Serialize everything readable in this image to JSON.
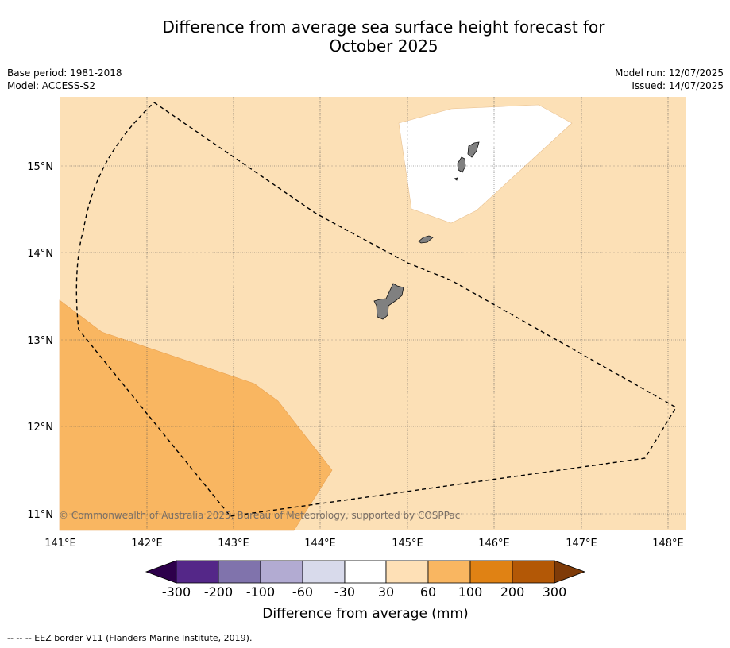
{
  "title": {
    "line1": "Difference from average sea surface height forecast for",
    "line2": "October 2025"
  },
  "meta": {
    "base_period": "Base period: 1981-2018",
    "model": "Model: ACCESS-S2",
    "model_run": "Model run: 12/07/2025",
    "issued": "Issued: 14/07/2025"
  },
  "map": {
    "lat_labels": [
      "15°N",
      "14°N",
      "13°N",
      "12°N",
      "11°N"
    ],
    "lon_labels": [
      "141°E",
      "142°E",
      "143°E",
      "144°E",
      "145°E",
      "146°E",
      "147°E",
      "148°E"
    ],
    "copyright": "© Commonwealth of Australia 2025, Bureau of Meteorology, supported by COSPPac",
    "colors": {
      "ocean_30_60": "#fce0b6",
      "band_60_100": "#f9b661",
      "band_neg30_30": "#ffffff",
      "land": "#808080"
    }
  },
  "colorbar": {
    "ticks": [
      "-300",
      "-200",
      "-100",
      "-60",
      "-30",
      "30",
      "60",
      "100",
      "200",
      "300"
    ],
    "colors": [
      "#2d004b",
      "#542788",
      "#8073ac",
      "#b2abd2",
      "#d8daeb",
      "#ffffff",
      "#fee0b6",
      "#f9b661",
      "#e08214",
      "#b35806",
      "#7f3b08"
    ],
    "label": "Difference from average (mm)"
  },
  "footer": {
    "eez_legend": "--  --  -- EEZ border V11 (Flanders Marine Institute, 2019)."
  }
}
